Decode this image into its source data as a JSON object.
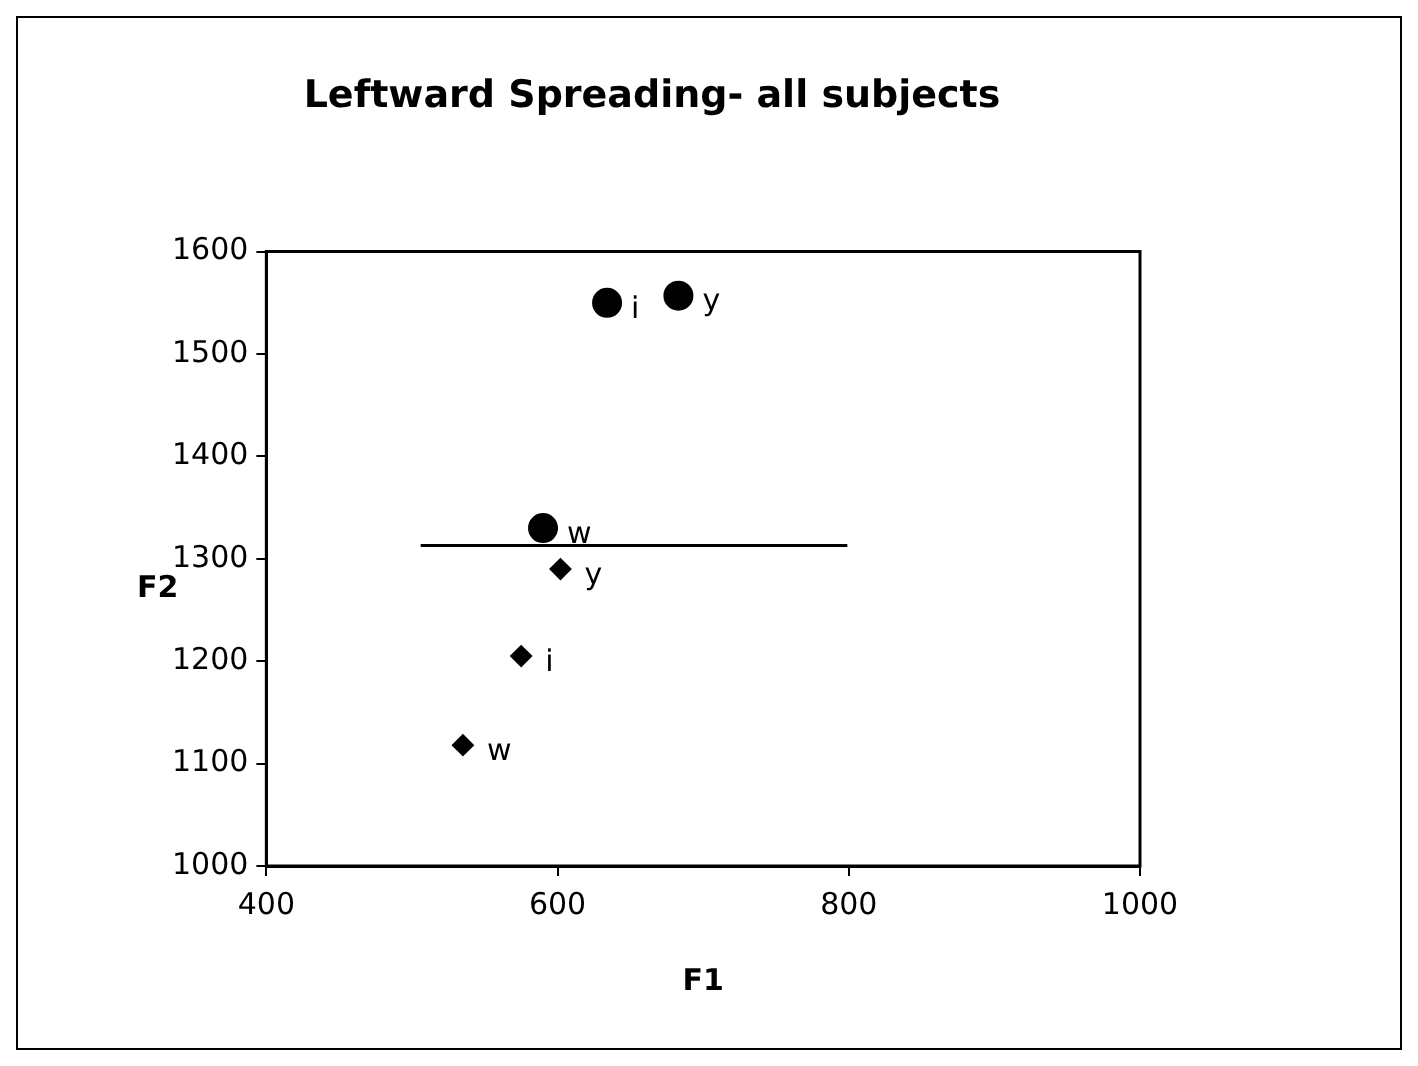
{
  "chart_data": {
    "type": "scatter",
    "title": "Leftward Spreading- all subjects",
    "xlabel": "F1",
    "ylabel": "F2",
    "xlim": [
      400,
      1000
    ],
    "xticks": [
      400,
      600,
      800,
      1000
    ],
    "ylim": [
      1000,
      1600
    ],
    "yticks": [
      1000,
      1100,
      1200,
      1300,
      1400,
      1500,
      1600
    ],
    "grid": false,
    "legend": false,
    "series": [
      {
        "type": "scatter",
        "marker": "circle",
        "color": "#000000",
        "x": [
          634,
          683,
          590
        ],
        "values": [
          1550,
          1557,
          1330
        ]
      },
      {
        "type": "scatter",
        "marker": "diamond",
        "color": "#000000",
        "x": [
          602,
          575,
          535
        ],
        "values": [
          1290,
          1205,
          1118
        ]
      },
      {
        "type": "line",
        "marker": "none",
        "color": "#000000",
        "x": [
          506,
          799
        ],
        "values": [
          1313,
          1313
        ]
      }
    ],
    "annotations": [
      {
        "text": "i",
        "x": 634,
        "y": 1550
      },
      {
        "text": "y",
        "x": 683,
        "y": 1557
      },
      {
        "text": "w",
        "x": 590,
        "y": 1330
      },
      {
        "text": "y",
        "x": 602,
        "y": 1290
      },
      {
        "text": "i",
        "x": 575,
        "y": 1205
      },
      {
        "text": "w",
        "x": 535,
        "y": 1118
      }
    ]
  }
}
